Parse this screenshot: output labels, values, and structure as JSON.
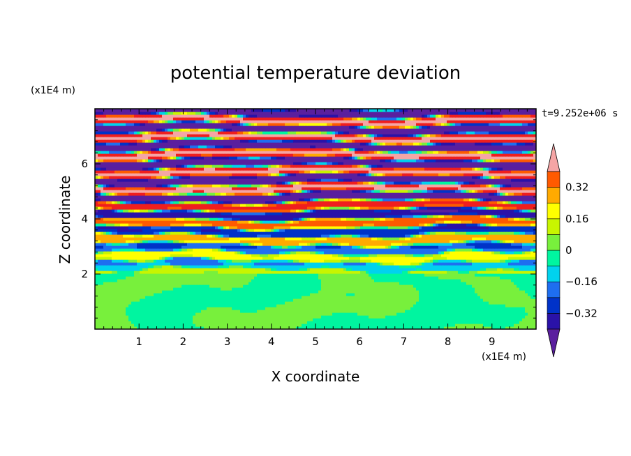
{
  "chart_data": {
    "type": "heatmap",
    "title": "potential temperature deviation",
    "xlabel": "X coordinate",
    "ylabel": "Z coordinate",
    "x_unit_label": "(x1E4 m)",
    "y_unit_label": "(x1E4 m)",
    "time_label": "t=9.252e+06 s",
    "xlim": [
      0,
      10
    ],
    "ylim": [
      0,
      8
    ],
    "x_ticks": [
      "1",
      "2",
      "3",
      "4",
      "5",
      "6",
      "7",
      "8",
      "9"
    ],
    "y_ticks": [
      "2",
      "4",
      "6"
    ],
    "colorbar": {
      "levels": [
        -0.48,
        -0.4,
        -0.32,
        -0.24,
        -0.16,
        -0.08,
        0,
        0.08,
        0.16,
        0.24,
        0.32,
        0.4,
        0.48
      ],
      "colors": [
        "#5a1f9e",
        "#2a12a8",
        "#0032c8",
        "#1e6ef0",
        "#00d2ee",
        "#00f5a0",
        "#78f03c",
        "#c8f500",
        "#ffff00",
        "#ffaa00",
        "#ff5a00",
        "#f01e1e",
        "#f5a5a5"
      ],
      "tick_labels": [
        "0.32",
        "0.16",
        "0",
        "−0.16",
        "−0.32"
      ],
      "tick_values": [
        0.32,
        0.16,
        0,
        -0.16,
        -0.32
      ],
      "extend": "both"
    },
    "field_structure": {
      "lower_layer_top_z": 2.0,
      "lower_layer_values": [
        0.04,
        -0.04
      ],
      "upper_band_values": [
        0.48,
        -0.48
      ],
      "transition_z": [
        2.0,
        5.0
      ]
    }
  }
}
